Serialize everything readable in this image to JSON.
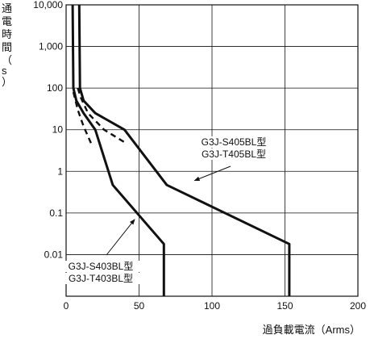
{
  "chart_data": {
    "type": "line",
    "title": "",
    "ylabel": "通電時間（s）",
    "xlabel": "過負載電流（Arms）",
    "x_ticks": [
      "0",
      "50",
      "100",
      "150",
      "200"
    ],
    "y_ticks": [
      "10,000",
      "1,000",
      "100",
      "10",
      "1",
      "0.1",
      "0.01"
    ],
    "xlim": [
      0,
      200
    ],
    "ylim": [
      0.001,
      10000
    ],
    "y_scale": "log",
    "grid": true,
    "series": [
      {
        "name": "G3J-S405BL型 / G3J-T405BL型",
        "style": "solid",
        "points": [
          [
            9,
            10000
          ],
          [
            9.5,
            100
          ],
          [
            12,
            50
          ],
          [
            20,
            25
          ],
          [
            40,
            10
          ],
          [
            69,
            0.47
          ],
          [
            153,
            0.018
          ],
          [
            153,
            0.001
          ]
        ]
      },
      {
        "name": "G3J-S403BL型 / G3J-T403BL型",
        "style": "solid",
        "points": [
          [
            4.5,
            10000
          ],
          [
            5,
            100
          ],
          [
            7,
            50
          ],
          [
            12,
            25
          ],
          [
            20,
            10
          ],
          [
            32,
            0.47
          ],
          [
            67,
            0.018
          ],
          [
            67,
            0.001
          ]
        ]
      },
      {
        "name": "",
        "style": "dashed",
        "points": [
          [
            8,
            100
          ],
          [
            10,
            60
          ],
          [
            15,
            25
          ],
          [
            26,
            10
          ],
          [
            40,
            5
          ]
        ]
      },
      {
        "name": "",
        "style": "dashed",
        "points": [
          [
            5,
            80
          ],
          [
            8,
            30
          ],
          [
            12,
            12
          ],
          [
            18,
            4
          ]
        ]
      }
    ],
    "annotations": [
      {
        "lines": [
          "G3J-S405BL型",
          "G3J-T405BL型"
        ],
        "points_to": [
          88,
          0.6
        ]
      },
      {
        "lines": [
          "G3J-S403BL型",
          "G3J-T403BL型"
        ],
        "points_to": [
          47,
          0.07
        ]
      }
    ]
  }
}
